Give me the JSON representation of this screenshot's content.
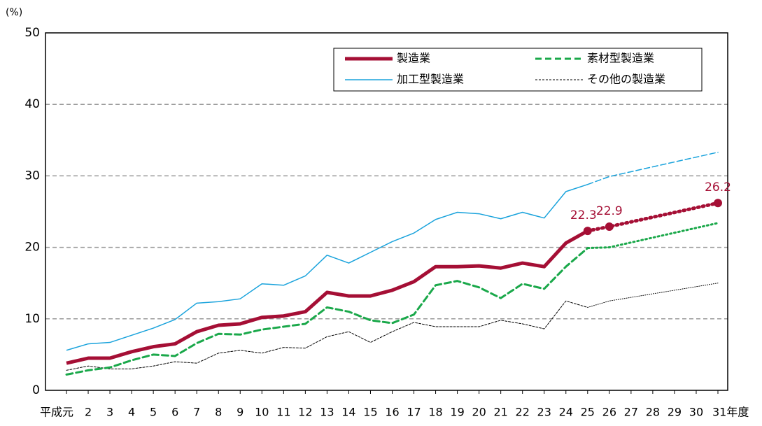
{
  "chart_data": {
    "type": "line",
    "y_label": "(%)",
    "categories": [
      "平成元",
      "2",
      "3",
      "4",
      "5",
      "6",
      "7",
      "8",
      "9",
      "10",
      "11",
      "12",
      "13",
      "14",
      "15",
      "16",
      "17",
      "18",
      "19",
      "20",
      "21",
      "22",
      "23",
      "24",
      "25",
      "26",
      "27",
      "28",
      "29",
      "30",
      "31年度"
    ],
    "ylim": [
      0,
      50
    ],
    "yticks": [
      0,
      10,
      20,
      30,
      40,
      50
    ],
    "grid": true,
    "series": [
      {
        "name": "製造業",
        "color": "#a50f35",
        "width": 5,
        "dash": "",
        "forecast_dash": "2 5",
        "values": [
          3.8,
          4.5,
          4.5,
          5.4,
          6.1,
          6.5,
          8.2,
          9.1,
          9.3,
          10.2,
          10.4,
          11.0,
          13.7,
          13.2,
          13.2,
          14.0,
          15.2,
          17.3,
          17.3,
          17.4,
          17.1,
          17.8,
          17.3,
          20.6,
          22.3,
          null,
          null,
          null,
          null,
          null,
          null
        ],
        "forecast": [
          null,
          null,
          null,
          null,
          null,
          null,
          null,
          null,
          null,
          null,
          null,
          null,
          null,
          null,
          null,
          null,
          null,
          null,
          null,
          null,
          null,
          null,
          null,
          null,
          22.3,
          22.9,
          23.56,
          24.22,
          24.88,
          25.54,
          26.2
        ],
        "labeled_points": [
          24,
          25,
          30
        ]
      },
      {
        "name": "素材型製造業",
        "color": "#1aa84a",
        "width": 3,
        "dash": "9 5",
        "forecast_dash": "2 4",
        "values": [
          2.2,
          2.8,
          3.2,
          4.2,
          5.0,
          4.8,
          6.6,
          7.9,
          7.8,
          8.5,
          8.9,
          9.3,
          11.6,
          11.0,
          9.8,
          9.4,
          10.6,
          14.7,
          15.3,
          14.4,
          12.9,
          14.9,
          14.2,
          17.3,
          19.9,
          null,
          null,
          null,
          null,
          null,
          null
        ],
        "forecast": [
          null,
          null,
          null,
          null,
          null,
          null,
          null,
          null,
          null,
          null,
          null,
          null,
          null,
          null,
          null,
          null,
          null,
          null,
          null,
          null,
          null,
          null,
          null,
          null,
          19.9,
          20.0,
          20.68,
          21.36,
          22.04,
          22.72,
          23.4
        ]
      },
      {
        "name": "加工型製造業",
        "color": "#1aa3dc",
        "width": 1.5,
        "dash": "",
        "forecast_dash": "8 4",
        "values": [
          5.6,
          6.5,
          6.7,
          7.7,
          8.7,
          9.9,
          12.2,
          12.4,
          12.8,
          14.9,
          14.7,
          16.0,
          18.9,
          17.8,
          19.3,
          20.8,
          22.0,
          23.9,
          24.9,
          24.7,
          24.0,
          24.9,
          24.1,
          27.8,
          28.8,
          null,
          null,
          null,
          null,
          null,
          null
        ],
        "forecast": [
          null,
          null,
          null,
          null,
          null,
          null,
          null,
          null,
          null,
          null,
          null,
          null,
          null,
          null,
          null,
          null,
          null,
          null,
          null,
          null,
          null,
          null,
          null,
          null,
          28.8,
          29.9,
          30.58,
          31.26,
          31.94,
          32.62,
          33.3
        ]
      },
      {
        "name": "その他の製造業",
        "color": "#000000",
        "width": 1,
        "dash": "3 2",
        "forecast_dash": "1 2",
        "values": [
          2.8,
          3.4,
          3.0,
          3.0,
          3.4,
          4.0,
          3.8,
          5.2,
          5.6,
          5.2,
          6.0,
          5.9,
          7.5,
          8.2,
          6.7,
          8.2,
          9.5,
          8.9,
          8.9,
          8.9,
          9.8,
          9.3,
          8.6,
          12.5,
          11.6,
          null,
          null,
          null,
          null,
          null,
          null
        ],
        "forecast": [
          null,
          null,
          null,
          null,
          null,
          null,
          null,
          null,
          null,
          null,
          null,
          null,
          null,
          null,
          null,
          null,
          null,
          null,
          null,
          null,
          null,
          null,
          null,
          null,
          11.6,
          12.5,
          13.0,
          13.5,
          14.0,
          14.5,
          15.0
        ]
      }
    ]
  }
}
